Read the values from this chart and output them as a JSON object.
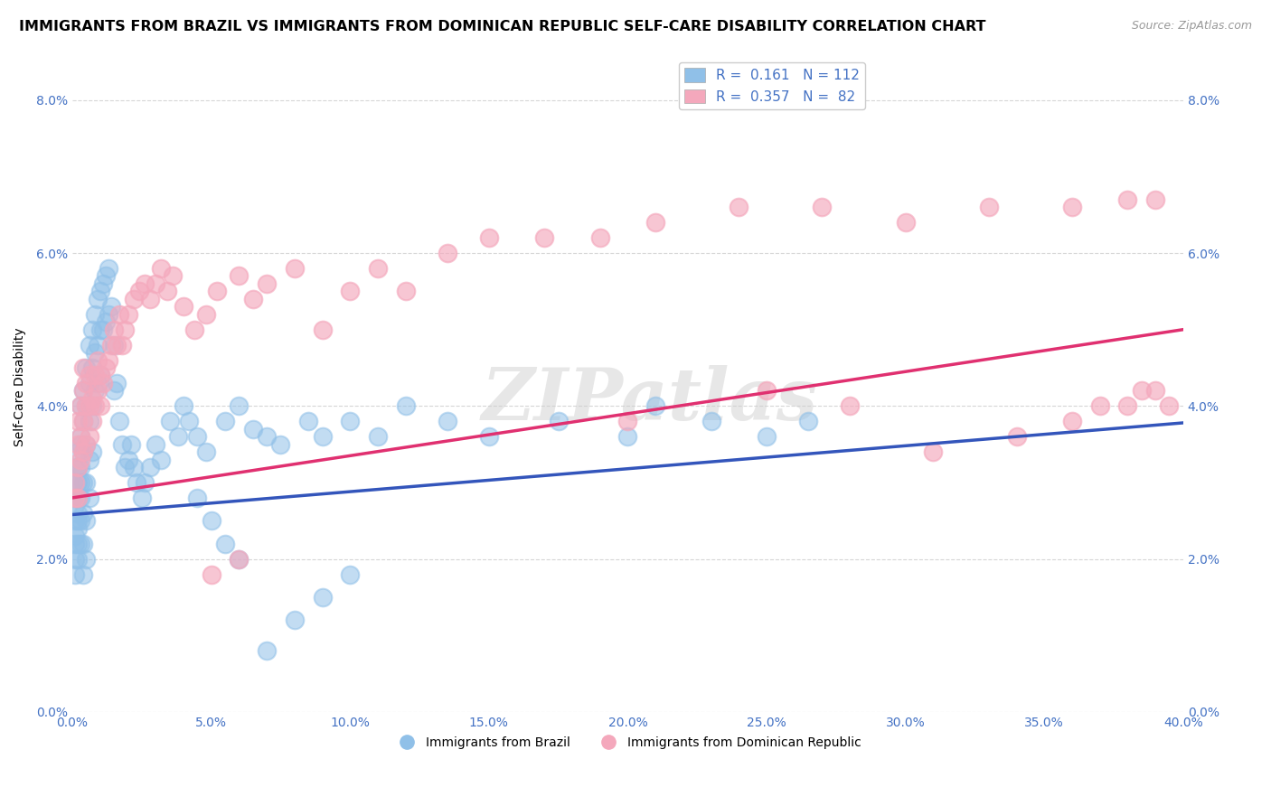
{
  "title": "IMMIGRANTS FROM BRAZIL VS IMMIGRANTS FROM DOMINICAN REPUBLIC SELF-CARE DISABILITY CORRELATION CHART",
  "source": "Source: ZipAtlas.com",
  "ylabel": "Self-Care Disability",
  "xlim": [
    0.0,
    0.4
  ],
  "ylim": [
    0.0,
    0.085
  ],
  "xticks": [
    0.0,
    0.05,
    0.1,
    0.15,
    0.2,
    0.25,
    0.3,
    0.35,
    0.4
  ],
  "yticks": [
    0.0,
    0.02,
    0.04,
    0.06,
    0.08
  ],
  "brazil_R": 0.161,
  "brazil_N": 112,
  "dr_R": 0.357,
  "dr_N": 82,
  "brazil_color": "#90c0e8",
  "dr_color": "#f4a8bc",
  "brazil_line_color": "#3355bb",
  "dr_line_color": "#e03070",
  "title_fontsize": 11.5,
  "source_fontsize": 9,
  "axis_label_fontsize": 10,
  "tick_fontsize": 10,
  "legend_fontsize": 11,
  "background_color": "#ffffff",
  "grid_color": "#bbbbbb",
  "watermark": "ZIPatlas",
  "brazil_x": [
    0.001,
    0.001,
    0.001,
    0.001,
    0.001,
    0.001,
    0.001,
    0.001,
    0.002,
    0.002,
    0.002,
    0.002,
    0.002,
    0.002,
    0.002,
    0.002,
    0.002,
    0.002,
    0.002,
    0.003,
    0.003,
    0.003,
    0.003,
    0.003,
    0.003,
    0.003,
    0.003,
    0.004,
    0.004,
    0.004,
    0.004,
    0.004,
    0.004,
    0.004,
    0.005,
    0.005,
    0.005,
    0.005,
    0.005,
    0.005,
    0.006,
    0.006,
    0.006,
    0.006,
    0.006,
    0.007,
    0.007,
    0.007,
    0.007,
    0.008,
    0.008,
    0.008,
    0.009,
    0.009,
    0.009,
    0.01,
    0.01,
    0.01,
    0.011,
    0.011,
    0.012,
    0.012,
    0.013,
    0.013,
    0.014,
    0.015,
    0.015,
    0.016,
    0.017,
    0.018,
    0.019,
    0.02,
    0.021,
    0.022,
    0.023,
    0.025,
    0.026,
    0.028,
    0.03,
    0.032,
    0.035,
    0.038,
    0.04,
    0.042,
    0.045,
    0.048,
    0.055,
    0.06,
    0.065,
    0.07,
    0.075,
    0.085,
    0.09,
    0.1,
    0.11,
    0.12,
    0.135,
    0.15,
    0.175,
    0.2,
    0.21,
    0.23,
    0.25,
    0.265,
    0.1,
    0.09,
    0.08,
    0.07,
    0.06,
    0.055,
    0.05,
    0.045
  ],
  "brazil_y": [
    0.025,
    0.028,
    0.03,
    0.023,
    0.02,
    0.027,
    0.022,
    0.018,
    0.032,
    0.028,
    0.025,
    0.022,
    0.03,
    0.026,
    0.02,
    0.034,
    0.032,
    0.028,
    0.024,
    0.036,
    0.032,
    0.028,
    0.04,
    0.035,
    0.03,
    0.025,
    0.022,
    0.042,
    0.038,
    0.034,
    0.03,
    0.026,
    0.022,
    0.018,
    0.045,
    0.04,
    0.035,
    0.03,
    0.025,
    0.02,
    0.048,
    0.043,
    0.038,
    0.033,
    0.028,
    0.05,
    0.045,
    0.04,
    0.034,
    0.052,
    0.047,
    0.042,
    0.054,
    0.048,
    0.043,
    0.055,
    0.05,
    0.044,
    0.056,
    0.05,
    0.057,
    0.051,
    0.058,
    0.052,
    0.053,
    0.048,
    0.042,
    0.043,
    0.038,
    0.035,
    0.032,
    0.033,
    0.035,
    0.032,
    0.03,
    0.028,
    0.03,
    0.032,
    0.035,
    0.033,
    0.038,
    0.036,
    0.04,
    0.038,
    0.036,
    0.034,
    0.038,
    0.04,
    0.037,
    0.036,
    0.035,
    0.038,
    0.036,
    0.038,
    0.036,
    0.04,
    0.038,
    0.036,
    0.038,
    0.036,
    0.04,
    0.038,
    0.036,
    0.038,
    0.018,
    0.015,
    0.012,
    0.008,
    0.02,
    0.022,
    0.025,
    0.028
  ],
  "dr_x": [
    0.001,
    0.001,
    0.002,
    0.002,
    0.002,
    0.002,
    0.003,
    0.003,
    0.003,
    0.004,
    0.004,
    0.004,
    0.004,
    0.005,
    0.005,
    0.005,
    0.006,
    0.006,
    0.006,
    0.007,
    0.007,
    0.008,
    0.008,
    0.009,
    0.009,
    0.01,
    0.01,
    0.011,
    0.012,
    0.013,
    0.014,
    0.015,
    0.016,
    0.017,
    0.018,
    0.019,
    0.02,
    0.022,
    0.024,
    0.026,
    0.028,
    0.03,
    0.032,
    0.034,
    0.036,
    0.04,
    0.044,
    0.048,
    0.052,
    0.06,
    0.065,
    0.07,
    0.08,
    0.09,
    0.1,
    0.11,
    0.12,
    0.135,
    0.15,
    0.17,
    0.19,
    0.21,
    0.24,
    0.27,
    0.3,
    0.33,
    0.36,
    0.38,
    0.39,
    0.395,
    0.2,
    0.25,
    0.28,
    0.31,
    0.34,
    0.36,
    0.37,
    0.38,
    0.385,
    0.39,
    0.05,
    0.06
  ],
  "dr_y": [
    0.03,
    0.028,
    0.032,
    0.028,
    0.035,
    0.038,
    0.033,
    0.036,
    0.04,
    0.034,
    0.038,
    0.042,
    0.045,
    0.035,
    0.04,
    0.043,
    0.036,
    0.04,
    0.044,
    0.038,
    0.041,
    0.04,
    0.044,
    0.042,
    0.046,
    0.04,
    0.044,
    0.043,
    0.045,
    0.046,
    0.048,
    0.05,
    0.048,
    0.052,
    0.048,
    0.05,
    0.052,
    0.054,
    0.055,
    0.056,
    0.054,
    0.056,
    0.058,
    0.055,
    0.057,
    0.053,
    0.05,
    0.052,
    0.055,
    0.057,
    0.054,
    0.056,
    0.058,
    0.05,
    0.055,
    0.058,
    0.055,
    0.06,
    0.062,
    0.062,
    0.062,
    0.064,
    0.066,
    0.066,
    0.064,
    0.066,
    0.066,
    0.067,
    0.067,
    0.04,
    0.038,
    0.042,
    0.04,
    0.034,
    0.036,
    0.038,
    0.04,
    0.04,
    0.042,
    0.042,
    0.018,
    0.02
  ]
}
